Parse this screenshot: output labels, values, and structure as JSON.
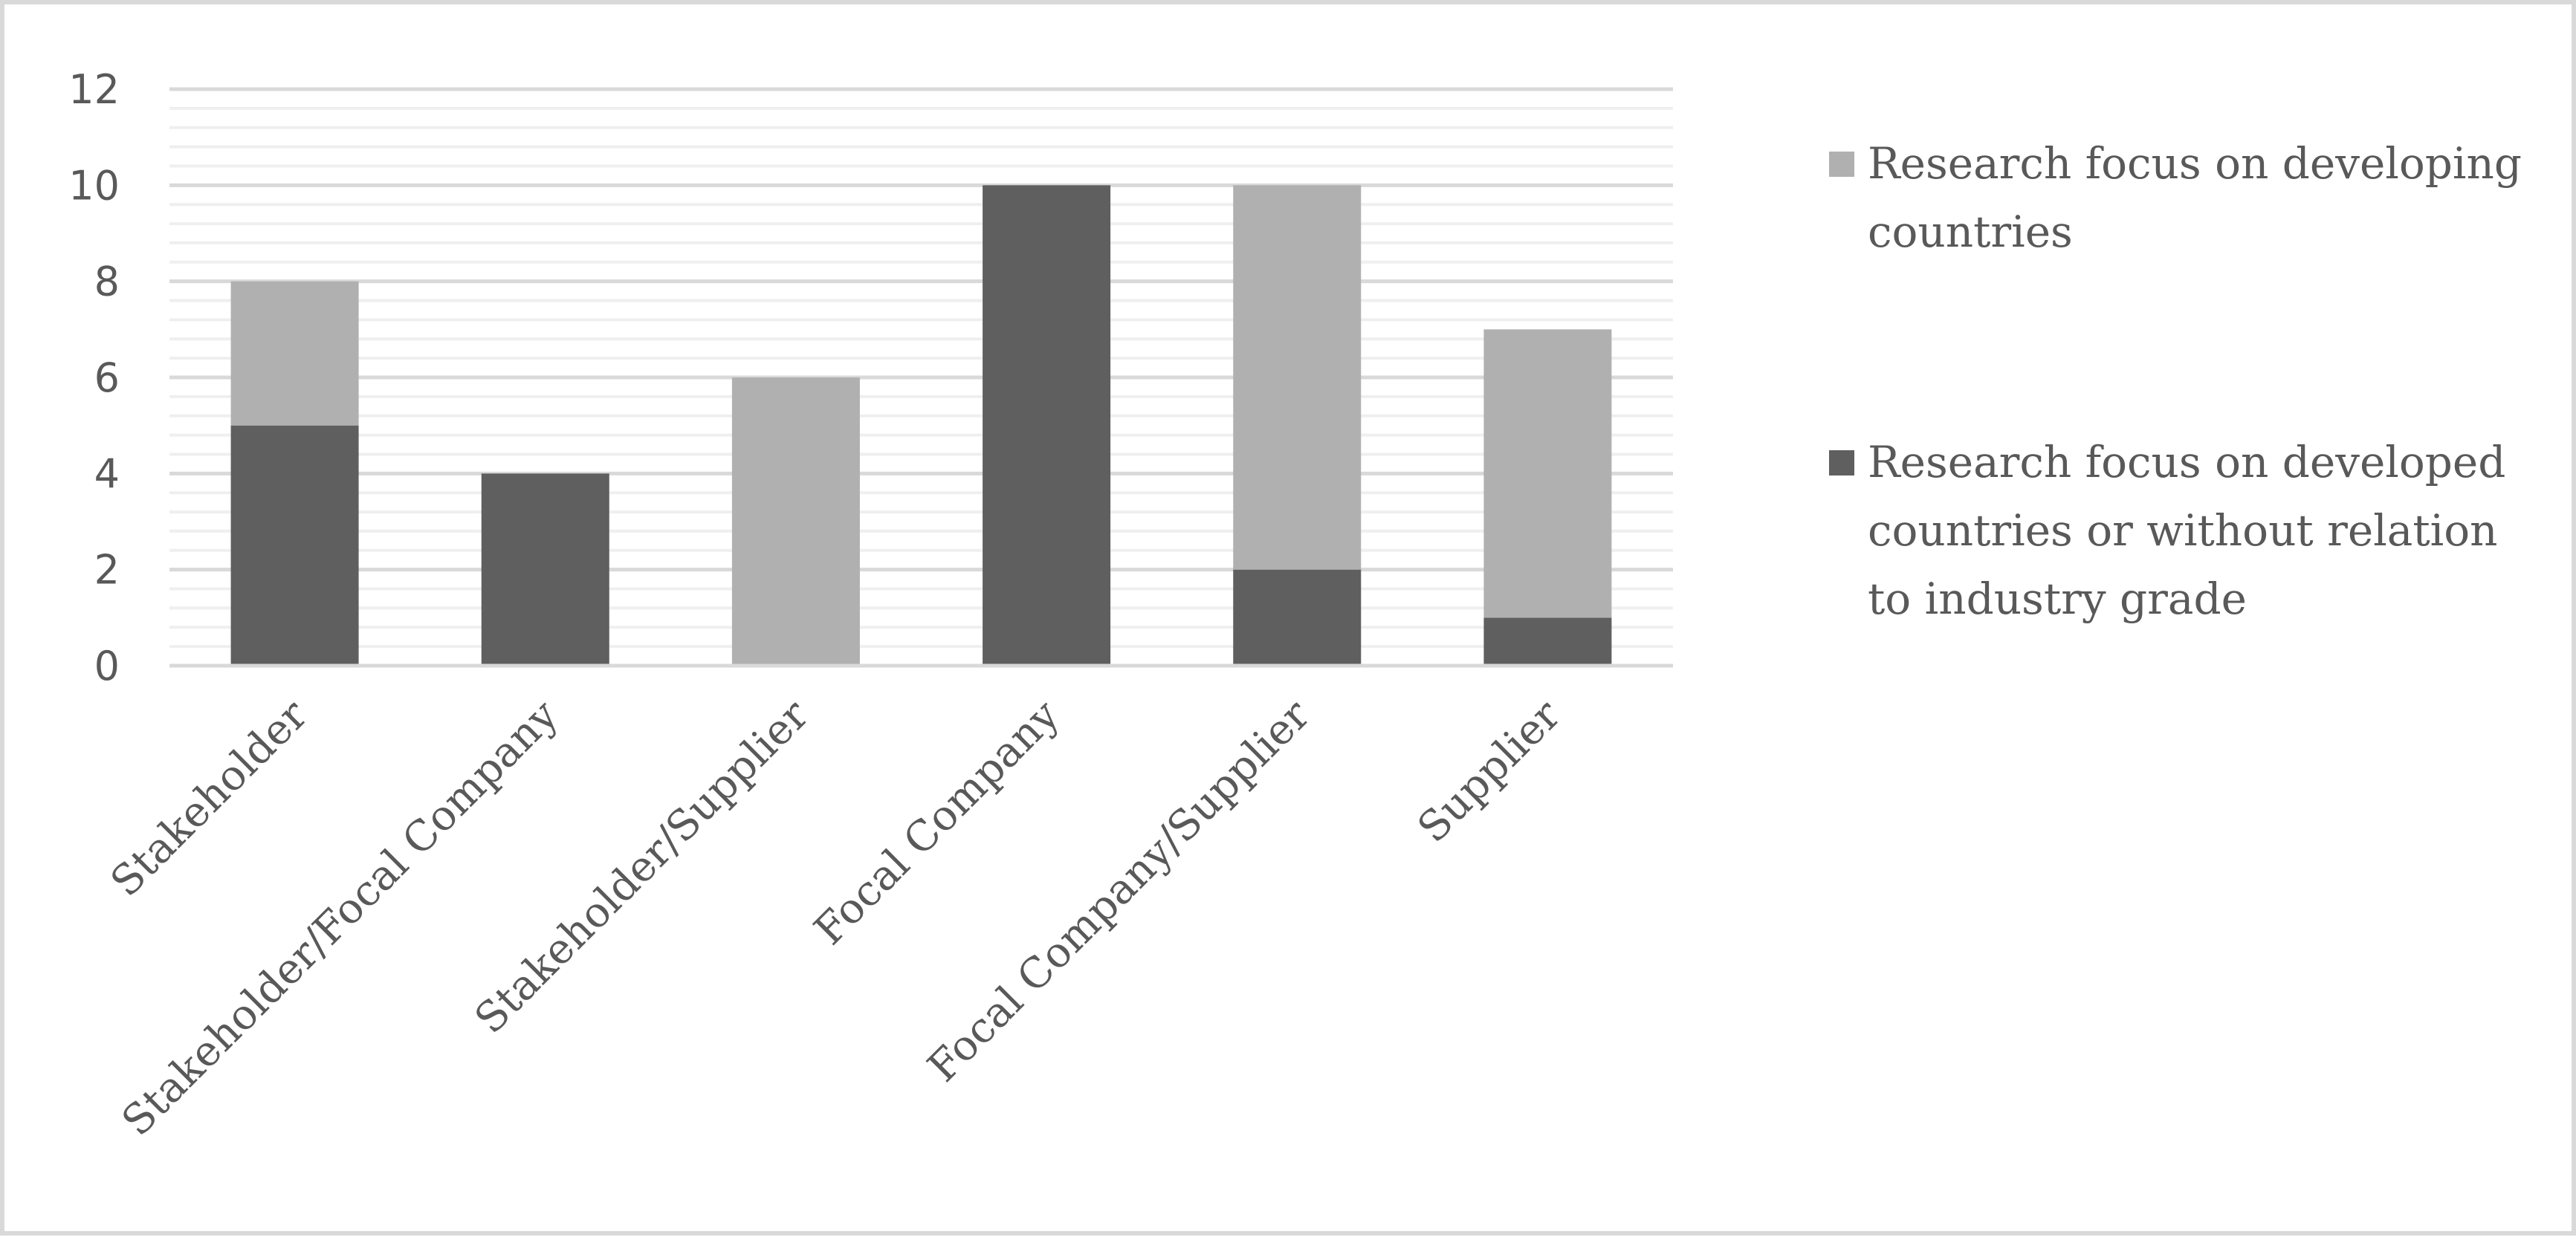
{
  "chart_data": {
    "type": "bar",
    "stacked": true,
    "title": "",
    "xlabel": "",
    "ylabel": "",
    "categories": [
      "Stakeholder",
      "Stakeholder/Focal Company",
      "Stakeholder/Supplier",
      "Focal Company",
      "Focal Company/Supplier",
      "Supplier"
    ],
    "series": [
      {
        "name": "Research focus on developed countries or without relation to industry grade",
        "legend_lines": [
          "Research focus on developed",
          "countries or without relation",
          "to industry grade"
        ],
        "color": "#5f5f5f",
        "values": [
          5,
          4,
          0,
          10,
          2,
          1
        ]
      },
      {
        "name": "Research focus on developing countries",
        "legend_lines": [
          "Research focus on developing",
          "countries"
        ],
        "color": "#b0b0b0",
        "values": [
          3,
          0,
          6,
          0,
          8,
          6
        ]
      }
    ],
    "ylim": [
      0,
      12
    ],
    "yticks": [
      "0",
      "2",
      "4",
      "6",
      "8",
      "10",
      "12"
    ],
    "minor_grid_step": 0.4,
    "grid": true,
    "legend_position": "right"
  }
}
